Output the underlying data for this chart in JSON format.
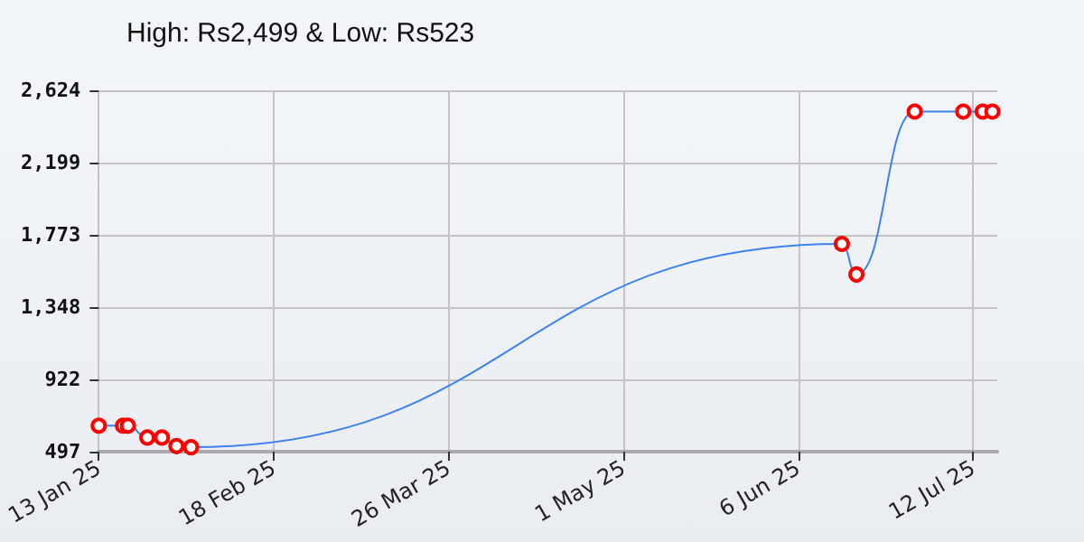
{
  "chart_data": {
    "type": "line",
    "title": "High: Rs2,499 & Low: Rs523",
    "x": [
      "2025-01-13",
      "2025-01-18",
      "2025-01-19",
      "2025-01-23",
      "2025-01-26",
      "2025-01-29",
      "2025-02-01",
      "2025-06-15",
      "2025-06-18",
      "2025-06-30",
      "2025-07-10",
      "2025-07-14",
      "2025-07-16"
    ],
    "series": [
      {
        "color": "#3b82f0",
        "values": [
          650,
          650,
          650,
          580,
          580,
          530,
          523,
          1720,
          1540,
          2499,
          2499,
          2499,
          2499
        ]
      }
    ],
    "xlim": [
      "2025-01-13",
      "2025-07-17"
    ],
    "xticks": [
      {
        "value": "2025-01-13",
        "label": "13 Jan 25"
      },
      {
        "value": "2025-02-18",
        "label": "18 Feb 25"
      },
      {
        "value": "2025-03-26",
        "label": "26 Mar 25"
      },
      {
        "value": "2025-05-01",
        "label": "1 May 25"
      },
      {
        "value": "2025-06-06",
        "label": "6 Jun 25"
      },
      {
        "value": "2025-07-12",
        "label": "12 Jul 25"
      }
    ],
    "ylim": [
      497,
      2624
    ],
    "yticks": [
      {
        "value": 497,
        "label": "497"
      },
      {
        "value": 922,
        "label": "922"
      },
      {
        "value": 1348,
        "label": "1,348"
      },
      {
        "value": 1773,
        "label": "1,773"
      },
      {
        "value": 2199,
        "label": "2,199"
      },
      {
        "value": 2624,
        "label": "2,624"
      }
    ],
    "grid": true,
    "marker": "circle",
    "line_style": "solid"
  }
}
